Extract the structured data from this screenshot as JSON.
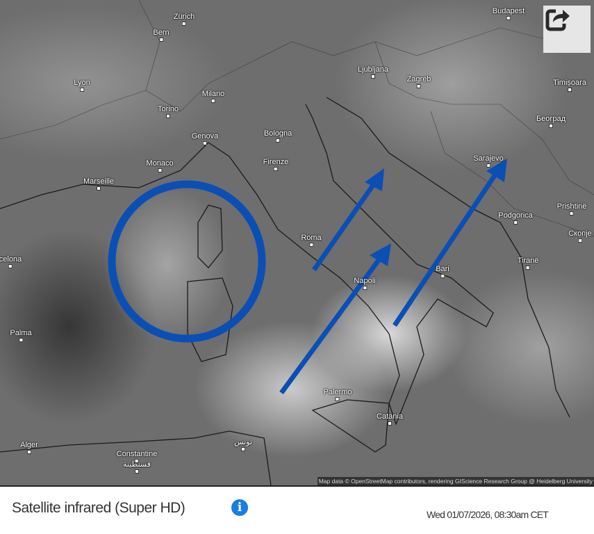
{
  "map": {
    "cities": [
      "Zürich",
      "Bern",
      "Budapest",
      "Lyon",
      "Milano",
      "Torino",
      "Ljubljana",
      "Zagreb",
      "Timișoara",
      "Genova",
      "Bologna",
      "Београд",
      "Monaco",
      "Firenze",
      "Sarajevo",
      "Marseille",
      "Roma",
      "Podgorica",
      "Prishtinë",
      "Скопје",
      "celona",
      "Bari",
      "Tiranë",
      "Napoli",
      "Palma",
      "Palermo",
      "Catania",
      "Alger",
      "Constantine",
      "تونس",
      "قسنطينة"
    ],
    "attribution": "Map data © OpenStreetMap contributors, rendering GIScience Research Group @ Heidelberg University",
    "annotation_color": "#0b4fb5",
    "share_icon": "share-icon"
  },
  "footer": {
    "title": "Satellite infrared (Super HD)",
    "info_icon": "i",
    "timestamp": "Wed 01/07/2026, 08:30am CET"
  },
  "colors": {
    "info": "#1a7de0",
    "annotation": "#0b4fb5"
  }
}
